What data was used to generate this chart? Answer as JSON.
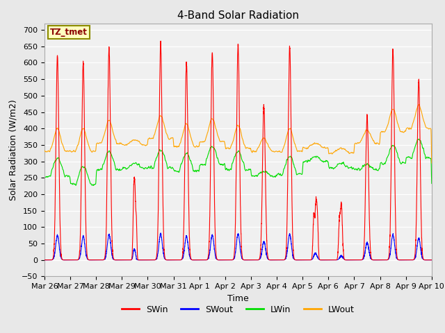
{
  "title": "4-Band Solar Radiation",
  "xlabel": "Time",
  "ylabel": "Solar Radiation (W/m2)",
  "ylim": [
    -50,
    720
  ],
  "yticks": [
    -50,
    0,
    50,
    100,
    150,
    200,
    250,
    300,
    350,
    400,
    450,
    500,
    550,
    600,
    650,
    700
  ],
  "annotation_text": "TZ_tmet",
  "annotation_color": "#8B0000",
  "annotation_bg": "#FFFFC0",
  "annotation_border": "#8B8B00",
  "colors": {
    "SWin": "#FF0000",
    "SWout": "#0000FF",
    "LWin": "#00DD00",
    "LWout": "#FFA500"
  },
  "bg_color": "#E8E8E8",
  "plot_bg_color": "#F0F0F0",
  "date_labels": [
    "Mar 26",
    "Mar 27",
    "Mar 28",
    "Mar 29",
    "Mar 30",
    "Mar 31",
    "Apr 1",
    "Apr 2",
    "Apr 3",
    "Apr 4",
    "Apr 5",
    "Apr 6",
    "Apr 7",
    "Apr 8",
    "Apr 9",
    "Apr 10"
  ],
  "n_days": 15,
  "pts_per_day": 288,
  "line_width": 0.8
}
